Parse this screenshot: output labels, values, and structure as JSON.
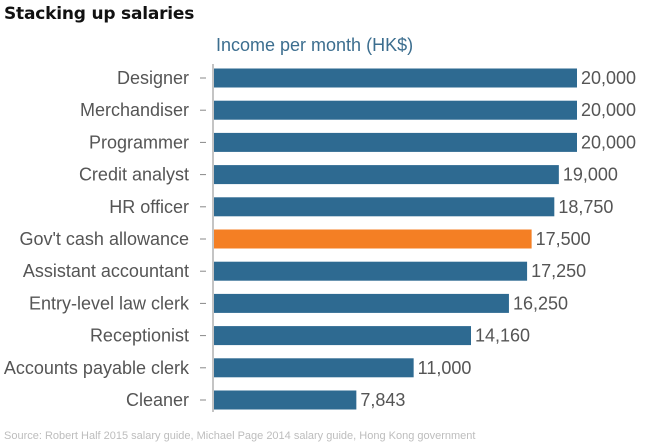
{
  "title": "Stacking up salaries",
  "source": "Source: Robert Half 2015 salary guide, Michael Page 2014 salary guide, Hong Kong government",
  "colors": {
    "bar": "#2e6a91",
    "highlight": "#f47f24",
    "axis": "#888888"
  },
  "chart_data": {
    "type": "bar",
    "orientation": "horizontal",
    "title": "Stacking up salaries",
    "xlabel": "Income per month (HK$)",
    "ylabel": "",
    "xlim": [
      0,
      20000
    ],
    "grid": false,
    "categories": [
      "Designer",
      "Merchandiser",
      "Programmer",
      "Credit analyst",
      "HR officer",
      "Gov't cash allowance",
      "Assistant accountant",
      "Entry-level law clerk",
      "Receptionist",
      "Accounts payable clerk",
      "Cleaner"
    ],
    "values": [
      20000,
      20000,
      20000,
      19000,
      18750,
      17500,
      17250,
      16250,
      14160,
      11000,
      7843
    ],
    "value_labels": [
      "20,000",
      "20,000",
      "20,000",
      "19,000",
      "18,750",
      "17,500",
      "17,250",
      "16,250",
      "14,160",
      "11,000",
      "7,843"
    ],
    "highlight_category": "Gov't cash allowance"
  }
}
